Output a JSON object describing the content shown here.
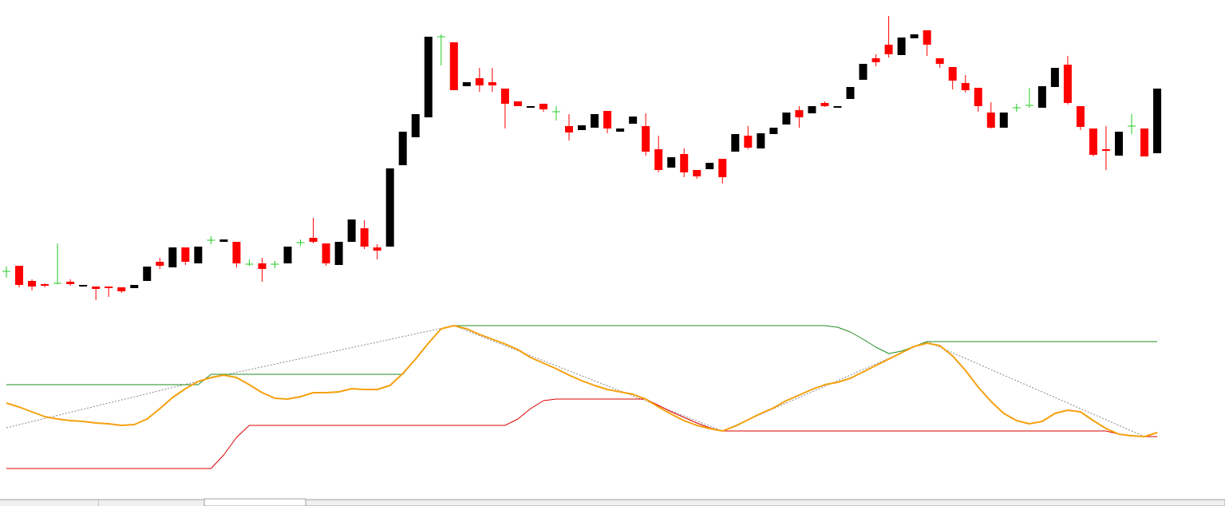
{
  "chart_data": [
    {
      "type": "candlestick",
      "categories": [
        null,
        null,
        null,
        null,
        null,
        null,
        null,
        null,
        null,
        null,
        null,
        null,
        null,
        null,
        null,
        null,
        null,
        null,
        null,
        null,
        null,
        null,
        null,
        null,
        null,
        null,
        null,
        null,
        null,
        null,
        null,
        null,
        null,
        null,
        null,
        null,
        null,
        null,
        null,
        null,
        null,
        null,
        null,
        null,
        null,
        null,
        null,
        null,
        null,
        null,
        null,
        null,
        null,
        null,
        null,
        null,
        null,
        null,
        null,
        null,
        null,
        null,
        null,
        null,
        null,
        null,
        null,
        null,
        null,
        null,
        null,
        null,
        null,
        null,
        null,
        null,
        null,
        null,
        null,
        null,
        null,
        null,
        null,
        null,
        null,
        null,
        null,
        null,
        null,
        null,
        null
      ],
      "open": [
        294,
        301,
        282,
        278,
        279,
        281,
        276,
        275,
        275,
        274,
        273,
        282,
        306,
        299,
        324,
        304,
        333,
        331,
        331,
        303,
        304,
        303,
        304,
        330,
        336,
        329,
        302,
        331,
        348,
        324,
        325,
        427,
        462,
        487,
        588,
        581,
        526,
        536,
        531,
        523,
        507,
        500,
        504,
        494,
        476,
        471,
        474,
        495,
        469,
        479,
        476,
        447,
        424,
        441,
        421,
        422,
        435,
        444,
        464,
        448,
        466,
        478,
        496,
        492,
        505,
        500,
        510,
        534,
        561,
        578,
        565,
        586,
        596,
        561,
        550,
        530,
        524,
        493,
        474,
        499,
        502,
        499,
        525,
        553,
        501,
        473,
        447,
        439,
        476,
        473,
        442
      ],
      "high": [
        300,
        301,
        284,
        279,
        329,
        284,
        277,
        275,
        275,
        274,
        277,
        300,
        311,
        324,
        324,
        325,
        338,
        334,
        331,
        309,
        311,
        307,
        325,
        334,
        361,
        329,
        331,
        359,
        358,
        328,
        423,
        469,
        491,
        588,
        591,
        581,
        531,
        549,
        549,
        523,
        507,
        501,
        504,
        501,
        491,
        477,
        491,
        495,
        473,
        488,
        492,
        464,
        437,
        448,
        421,
        430,
        435,
        466,
        476,
        467,
        474,
        493,
        501,
        501,
        507,
        501,
        525,
        554,
        566,
        614,
        587,
        591,
        596,
        561,
        550,
        540,
        524,
        506,
        493,
        504,
        524,
        526,
        549,
        564,
        501,
        473,
        476,
        469,
        491,
        473,
        523
      ],
      "low": [
        286,
        274,
        270,
        274,
        278,
        276,
        276,
        258,
        262,
        267,
        273,
        282,
        297,
        299,
        302,
        304,
        328,
        331,
        299,
        301,
        281,
        298,
        304,
        326,
        329,
        301,
        302,
        331,
        322,
        309,
        325,
        427,
        462,
        487,
        552,
        521,
        526,
        519,
        519,
        473,
        501,
        500,
        494,
        483,
        458,
        471,
        474,
        467,
        469,
        479,
        439,
        418,
        424,
        412,
        410,
        422,
        404,
        444,
        447,
        448,
        466,
        478,
        474,
        492,
        500,
        500,
        510,
        534,
        551,
        562,
        565,
        586,
        564,
        549,
        522,
        518,
        494,
        473,
        474,
        494,
        499,
        499,
        525,
        503,
        471,
        438,
        421,
        439,
        466,
        438,
        442
      ],
      "close": [
        294,
        277,
        275,
        276,
        279,
        278,
        277,
        272,
        273,
        269,
        277,
        300,
        301,
        324,
        306,
        325,
        333,
        334,
        304,
        303,
        297,
        303,
        325,
        330,
        331,
        304,
        331,
        359,
        325,
        320,
        423,
        469,
        491,
        588,
        588,
        521,
        531,
        527,
        527,
        504,
        501,
        501,
        497,
        494,
        468,
        477,
        491,
        473,
        473,
        488,
        444,
        421,
        437,
        418,
        413,
        430,
        412,
        466,
        449,
        467,
        474,
        493,
        487,
        501,
        501,
        501,
        525,
        554,
        556,
        566,
        587,
        591,
        578,
        554,
        533,
        521,
        501,
        474,
        493,
        499,
        502,
        526,
        549,
        505,
        475,
        440,
        445,
        469,
        476,
        438,
        523
      ],
      "up_color": "#000000",
      "down_color": "#ff0000",
      "doji_color": "#22cc22",
      "ylim": [
        244,
        634
      ]
    },
    {
      "type": "line",
      "categories": [
        null,
        null,
        null,
        null,
        null,
        null,
        null,
        null,
        null,
        null,
        null,
        null,
        null,
        null,
        null,
        null,
        null,
        null,
        null,
        null,
        null,
        null,
        null,
        null,
        null,
        null,
        null,
        null,
        null,
        null,
        null,
        null,
        null,
        null,
        null,
        null,
        null,
        null,
        null,
        null,
        null,
        null,
        null,
        null,
        null,
        null,
        null,
        null,
        null,
        null,
        null,
        null,
        null,
        null,
        null,
        null,
        null,
        null,
        null,
        null,
        null,
        null,
        null,
        null,
        null,
        null,
        null,
        null,
        null,
        null,
        null,
        null,
        null,
        null,
        null,
        null,
        null,
        null,
        null,
        null,
        null,
        null,
        null,
        null,
        null,
        null,
        null,
        null,
        null,
        null,
        null
      ],
      "ylim": [
        0,
        230
      ],
      "series": [
        {
          "color": "#888888",
          "dashed": true,
          "width": 1,
          "values": [
            84,
            87.9,
            91.8,
            95.6,
            99.5,
            103.4,
            107.3,
            111.2,
            115.1,
            118.9,
            122.8,
            126.7,
            130.6,
            134.5,
            138.4,
            142.2,
            146.1,
            150,
            153.4,
            156.9,
            160.3,
            163.8,
            167.2,
            170.7,
            174.1,
            177.6,
            181,
            184.4,
            187.9,
            191.3,
            194.8,
            198.2,
            201.7,
            205.1,
            208.6,
            212,
            205.7,
            199.4,
            193.1,
            186.9,
            180.6,
            174.3,
            168,
            161.7,
            155.4,
            149.1,
            142.9,
            136.6,
            130.3,
            124,
            117.7,
            111.4,
            105.1,
            98.9,
            92.6,
            86.3,
            80,
            87,
            94,
            101,
            108,
            115,
            122,
            129,
            136,
            143,
            150,
            157,
            164,
            171,
            178,
            185,
            192,
            185,
            178,
            171,
            164,
            157,
            150,
            143,
            136,
            129,
            122,
            115,
            108,
            101,
            94,
            87,
            80,
            73,
            null
          ]
        },
        {
          "color": "#228b22",
          "dashed": false,
          "width": 1,
          "values": [
            138,
            138,
            138,
            138,
            138,
            138,
            138,
            138,
            138,
            138,
            138,
            138,
            138,
            138,
            138,
            138,
            151,
            151,
            151,
            151,
            151,
            151,
            151,
            151,
            151,
            151,
            151,
            151,
            151,
            151,
            151,
            151,
            170,
            190,
            208,
            212,
            212,
            212,
            212,
            212,
            212,
            212,
            212,
            212,
            212,
            212,
            212,
            212,
            212,
            212,
            212,
            212,
            212,
            212,
            212,
            212,
            212,
            212,
            212,
            212,
            212,
            212,
            212,
            212,
            212,
            210,
            204,
            195,
            185,
            177,
            180,
            186,
            192,
            192,
            192,
            192,
            192,
            192,
            192,
            192,
            192,
            192,
            192,
            192,
            192,
            192,
            192,
            192,
            192,
            192,
            192
          ]
        },
        {
          "color": "#dd0000",
          "dashed": false,
          "width": 1,
          "values": [
            33,
            33,
            33,
            33,
            33,
            33,
            33,
            33,
            33,
            33,
            33,
            33,
            33,
            33,
            33,
            33,
            33,
            50,
            72,
            87,
            87,
            87,
            87,
            87,
            87,
            87,
            87,
            87,
            87,
            87,
            87,
            87,
            87,
            87,
            87,
            87,
            87,
            87,
            87,
            87,
            95,
            108,
            118,
            120,
            120,
            120,
            120,
            120,
            120,
            120,
            120,
            112,
            104,
            97,
            90,
            84,
            80,
            80,
            80,
            80,
            80,
            80,
            80,
            80,
            80,
            80,
            80,
            80,
            80,
            80,
            80,
            80,
            80,
            80,
            80,
            80,
            80,
            80,
            80,
            80,
            80,
            80,
            80,
            80,
            80,
            80,
            80,
            76,
            74,
            73,
            73
          ]
        },
        {
          "color": "#f5a00f",
          "dashed": false,
          "width": 2,
          "values": [
            115,
            110,
            104,
            98,
            95,
            93,
            92,
            90,
            89,
            87,
            88,
            95,
            108,
            122,
            133,
            142,
            147,
            150,
            147,
            138,
            128,
            121,
            120,
            123,
            128,
            128,
            129,
            133,
            132,
            132,
            137,
            152,
            170,
            190,
            208,
            212,
            208,
            201,
            195,
            189,
            182,
            172,
            165,
            158,
            150,
            143,
            137,
            132,
            129,
            126,
            120,
            110,
            101,
            93,
            87,
            83,
            80,
            86,
            94,
            102,
            109,
            118,
            125,
            132,
            138,
            141,
            146,
            154,
            162,
            170,
            178,
            186,
            190,
            187,
            174,
            156,
            135,
            117,
            102,
            93,
            89,
            92,
            102,
            106,
            104,
            93,
            83,
            76,
            74,
            73,
            78
          ]
        }
      ]
    }
  ]
}
